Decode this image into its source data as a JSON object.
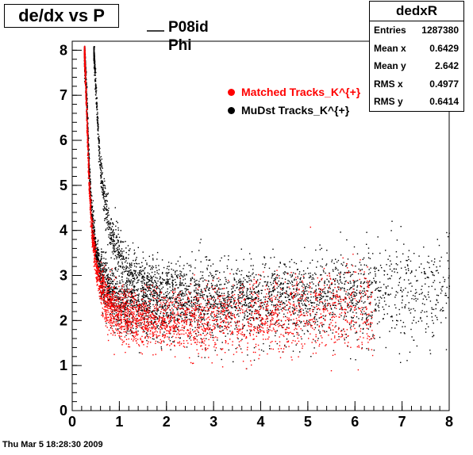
{
  "title": "de/dx vs P",
  "stats": {
    "name": "dedxR",
    "rows": [
      {
        "label": "Entries",
        "value": "1287380"
      },
      {
        "label": "Mean x",
        "value": "0.6429"
      },
      {
        "label": "Mean y",
        "value": "2.642"
      },
      {
        "label": "RMS x",
        "value": "0.4977"
      },
      {
        "label": "RMS y",
        "value": "0.6414"
      }
    ]
  },
  "top_legend": {
    "line1": "P08id",
    "line2": "Phi"
  },
  "footer": "Thu Mar  5 18:28:30 2009",
  "chart_data": {
    "type": "scatter",
    "title": "de/dx vs P",
    "xlabel": "",
    "ylabel": "",
    "xlim": [
      0,
      8
    ],
    "ylim": [
      0,
      8.2
    ],
    "x_ticks": [
      "0",
      "1",
      "2",
      "3",
      "4",
      "5",
      "6",
      "7",
      "8"
    ],
    "y_ticks": [
      "0",
      "1",
      "2",
      "3",
      "4",
      "5",
      "6",
      "7",
      "8"
    ],
    "grid": false,
    "legend_position": "top-right",
    "series": [
      {
        "name": "Matched Tracks_K^{+}",
        "color": "#ff0000",
        "band": [
          [
            0.25,
            8.0
          ],
          [
            0.3,
            6.5
          ],
          [
            0.35,
            5.0
          ],
          [
            0.4,
            4.1
          ],
          [
            0.5,
            3.2
          ],
          [
            0.6,
            2.7
          ],
          [
            0.8,
            2.3
          ],
          [
            1.0,
            2.1
          ],
          [
            1.5,
            2.0
          ],
          [
            2.0,
            2.0
          ],
          [
            3.0,
            2.05
          ],
          [
            4.0,
            2.1
          ],
          [
            5.0,
            2.2
          ],
          [
            6.0,
            2.25
          ]
        ]
      },
      {
        "name": "MuDst Tracks_K^{+}",
        "color": "#000000",
        "band": [
          [
            0.25,
            8.0
          ],
          [
            0.3,
            6.8
          ],
          [
            0.35,
            5.4
          ],
          [
            0.4,
            4.4
          ],
          [
            0.5,
            3.5
          ],
          [
            0.6,
            3.0
          ],
          [
            0.8,
            2.6
          ],
          [
            1.0,
            2.4
          ],
          [
            1.5,
            2.3
          ],
          [
            2.0,
            2.3
          ],
          [
            3.0,
            2.35
          ],
          [
            4.0,
            2.4
          ],
          [
            5.0,
            2.5
          ],
          [
            6.0,
            2.55
          ],
          [
            7.0,
            2.6
          ],
          [
            8.0,
            2.65
          ]
        ]
      },
      {
        "name": "",
        "color": "#000000",
        "band": [
          [
            0.45,
            8.0
          ],
          [
            0.5,
            7.0
          ],
          [
            0.55,
            6.0
          ],
          [
            0.6,
            5.3
          ],
          [
            0.7,
            4.5
          ],
          [
            0.8,
            4.0
          ],
          [
            1.0,
            3.4
          ],
          [
            1.2,
            3.1
          ],
          [
            1.5,
            2.9
          ],
          [
            2.0,
            2.75
          ],
          [
            3.0,
            2.6
          ],
          [
            4.0,
            2.6
          ],
          [
            5.0,
            2.6
          ],
          [
            6.0,
            2.65
          ]
        ]
      }
    ]
  },
  "colors": {
    "matched": "#ff0000",
    "mudst": "#000000"
  }
}
